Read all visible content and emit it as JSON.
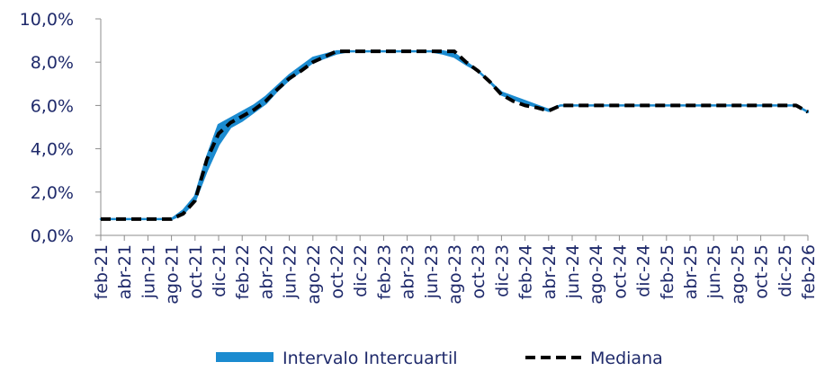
{
  "chart_data": {
    "type": "area",
    "title": "",
    "xlabel": "",
    "ylabel": "",
    "ylim": [
      0,
      10
    ],
    "y_ticks": [
      "0,0%",
      "2,0%",
      "4,0%",
      "6,0%",
      "8,0%",
      "10,0%"
    ],
    "x_tick_labels": [
      "feb-21",
      "abr-21",
      "jun-21",
      "ago-21",
      "oct-21",
      "dic-21",
      "feb-22",
      "abr-22",
      "jun-22",
      "ago-22",
      "oct-22",
      "dic-22",
      "feb-23",
      "abr-23",
      "jun-23",
      "ago-23",
      "oct-23",
      "dic-23",
      "feb-24",
      "abr-24",
      "jun-24",
      "ago-24",
      "oct-24",
      "dic-24",
      "feb-25",
      "abr-25",
      "jun-25",
      "ago-25",
      "oct-25",
      "dic-25",
      "feb-26"
    ],
    "x": [
      "feb-21",
      "mar-21",
      "abr-21",
      "may-21",
      "jun-21",
      "jul-21",
      "ago-21",
      "sep-21",
      "oct-21",
      "nov-21",
      "dic-21",
      "ene-22",
      "feb-22",
      "mar-22",
      "abr-22",
      "may-22",
      "jun-22",
      "jul-22",
      "ago-22",
      "sep-22",
      "oct-22",
      "nov-22",
      "dic-22",
      "ene-23",
      "feb-23",
      "mar-23",
      "abr-23",
      "may-23",
      "jun-23",
      "jul-23",
      "ago-23",
      "sep-23",
      "oct-23",
      "nov-23",
      "dic-23",
      "ene-24",
      "feb-24",
      "mar-24",
      "abr-24",
      "may-24",
      "jun-24",
      "jul-24",
      "ago-24",
      "sep-24",
      "oct-24",
      "nov-24",
      "dic-24",
      "ene-25",
      "feb-25",
      "mar-25",
      "abr-25",
      "may-25",
      "jun-25",
      "jul-25",
      "ago-25",
      "sep-25",
      "oct-25",
      "nov-25",
      "dic-25",
      "ene-26",
      "feb-26"
    ],
    "series": [
      {
        "name": "Intervalo Intercuartil",
        "kind": "band",
        "color": "#1b8bd0",
        "lower": [
          0.75,
          0.75,
          0.75,
          0.75,
          0.75,
          0.75,
          0.75,
          1.0,
          1.6,
          3.0,
          4.2,
          5.0,
          5.3,
          5.7,
          6.1,
          6.7,
          7.2,
          7.6,
          8.0,
          8.2,
          8.4,
          8.5,
          8.5,
          8.5,
          8.5,
          8.5,
          8.5,
          8.5,
          8.5,
          8.4,
          8.25,
          7.9,
          7.6,
          7.1,
          6.5,
          6.3,
          6.1,
          5.95,
          5.75,
          6.0,
          6.0,
          6.0,
          6.0,
          6.0,
          6.0,
          6.0,
          6.0,
          6.0,
          6.0,
          6.0,
          6.0,
          6.0,
          6.0,
          6.0,
          6.0,
          6.0,
          6.0,
          6.0,
          6.0,
          6.0,
          5.7
        ],
        "upper": [
          0.75,
          0.75,
          0.75,
          0.75,
          0.75,
          0.75,
          0.75,
          1.15,
          1.8,
          3.6,
          5.1,
          5.4,
          5.7,
          6.0,
          6.4,
          6.9,
          7.4,
          7.8,
          8.2,
          8.35,
          8.5,
          8.5,
          8.5,
          8.5,
          8.5,
          8.5,
          8.5,
          8.5,
          8.5,
          8.5,
          8.4,
          8.0,
          7.6,
          7.1,
          6.6,
          6.4,
          6.2,
          6.0,
          5.8,
          6.0,
          6.0,
          6.0,
          6.0,
          6.0,
          6.0,
          6.0,
          6.0,
          6.0,
          6.0,
          6.0,
          6.0,
          6.0,
          6.0,
          6.0,
          6.0,
          6.0,
          6.0,
          6.0,
          6.0,
          6.0,
          5.7
        ]
      },
      {
        "name": "Mediana",
        "kind": "line",
        "style": "dashed",
        "color": "#000000",
        "values": [
          0.75,
          0.75,
          0.75,
          0.75,
          0.75,
          0.75,
          0.75,
          1.0,
          1.6,
          3.5,
          4.7,
          5.2,
          5.5,
          5.8,
          6.2,
          6.75,
          7.25,
          7.6,
          8.0,
          8.25,
          8.5,
          8.5,
          8.5,
          8.5,
          8.5,
          8.5,
          8.5,
          8.5,
          8.5,
          8.5,
          8.5,
          8.0,
          7.6,
          7.1,
          6.5,
          6.2,
          6.0,
          5.9,
          5.75,
          6.0,
          6.0,
          6.0,
          6.0,
          6.0,
          6.0,
          6.0,
          6.0,
          6.0,
          6.0,
          6.0,
          6.0,
          6.0,
          6.0,
          6.0,
          6.0,
          6.0,
          6.0,
          6.0,
          6.0,
          6.0,
          5.7
        ]
      }
    ],
    "grid": false,
    "legend": "bottom"
  },
  "legend": {
    "band_label": "Intervalo Intercuartil",
    "median_label": "Mediana"
  }
}
